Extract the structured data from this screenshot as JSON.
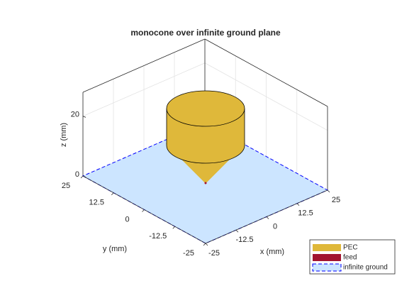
{
  "chart_data": {
    "type": "antenna3d",
    "title": "monocone over infinite ground plane",
    "xlabel": "x (mm)",
    "ylabel": "y (mm)",
    "zlabel": "z (mm)",
    "xlim": [
      -25,
      25
    ],
    "ylim": [
      -25,
      25
    ],
    "zlim": [
      0,
      28
    ],
    "xticks": [
      -25,
      -12.5,
      0,
      12.5,
      25
    ],
    "yticks": [
      -25,
      -12.5,
      0,
      12.5,
      25
    ],
    "zticks": [
      0,
      20
    ],
    "grid": true,
    "legend": [
      {
        "name": "PEC",
        "color": "#dfb83a"
      },
      {
        "name": "feed",
        "color": "#a2142f"
      },
      {
        "name": "infinite ground",
        "color": "#cce5ff"
      }
    ]
  }
}
